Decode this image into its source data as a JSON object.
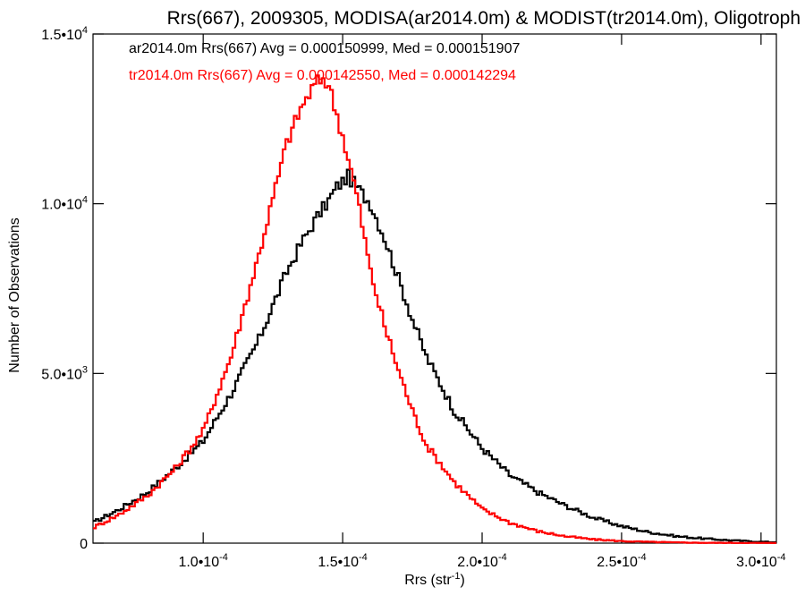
{
  "chart_data": {
    "type": "line",
    "title": "Rrs(667), 2009305, MODISA(ar2014.0m) & MODIST(tr2014.0m), Oligotroph",
    "xlabel": "Rrs (str",
    "xlabel_sup": "-1",
    "xlabel_tail": ")",
    "ylabel": "Number of Observations",
    "xlim": [
      6.05e-05,
      0.0003055
    ],
    "ylim": [
      0,
      15000
    ],
    "grid": false,
    "legend_position": "top-left",
    "x_ticks": [
      {
        "value": 0.0001,
        "base": "1.0•10",
        "exp": "-4"
      },
      {
        "value": 0.00015,
        "base": "1.5•10",
        "exp": "-4"
      },
      {
        "value": 0.0002,
        "base": "2.0•10",
        "exp": "-4"
      },
      {
        "value": 0.00025,
        "base": "2.5•10",
        "exp": "-4"
      },
      {
        "value": 0.0003,
        "base": "3.0•10",
        "exp": "-4"
      }
    ],
    "y_ticks": [
      {
        "value": 0,
        "base": "0",
        "exp": ""
      },
      {
        "value": 5000,
        "base": "5.0•10",
        "exp": "3"
      },
      {
        "value": 10000,
        "base": "1.0•10",
        "exp": "4"
      },
      {
        "value": 15000,
        "base": "1.5•10",
        "exp": "4"
      }
    ],
    "annotations": [
      {
        "text": "ar2014.0m Rrs(667) Avg = 0.000150999, Med = 0.000151907",
        "color": "#000000"
      },
      {
        "text": "tr2014.0m Rrs(667) Avg = 0.000142550, Med = 0.000142294",
        "color": "#ff0000"
      }
    ],
    "series": [
      {
        "color": "#000000",
        "x": [
          6.05e-05,
          7e-05,
          8e-05,
          9e-05,
          0.0001,
          0.00011,
          0.00012,
          0.00013,
          0.000135,
          0.00014,
          0.000145,
          0.000148,
          0.000152,
          0.000155,
          0.00016,
          0.000165,
          0.00017,
          0.000175,
          0.00018,
          0.00019,
          0.0002,
          0.00021,
          0.00022,
          0.00023,
          0.00024,
          0.00025,
          0.00026,
          0.00027,
          0.00028,
          0.00029,
          0.0003,
          0.0003055
        ],
        "y": [
          600,
          1000,
          1500,
          2200,
          3000,
          4400,
          6000,
          8000,
          8800,
          9500,
          10100,
          10500,
          10800,
          10500,
          10000,
          9000,
          7800,
          6600,
          5500,
          3900,
          2800,
          2000,
          1500,
          1100,
          750,
          500,
          320,
          200,
          130,
          80,
          40,
          30
        ]
      },
      {
        "color": "#ff0000",
        "x": [
          6.05e-05,
          7e-05,
          8e-05,
          9e-05,
          0.0001,
          0.00011,
          0.00012,
          0.00013,
          0.000135,
          0.00014,
          0.000143,
          0.000145,
          0.00015,
          0.000155,
          0.00016,
          0.000165,
          0.00017,
          0.000175,
          0.00018,
          0.00019,
          0.0002,
          0.00021,
          0.00022,
          0.00023,
          0.00024,
          0.00025,
          0.00026,
          0.00027,
          0.00028,
          0.0003,
          0.0003055
        ],
        "y": [
          450,
          850,
          1400,
          2200,
          3300,
          5500,
          8500,
          11800,
          12800,
          13500,
          13700,
          13500,
          12000,
          10300,
          8000,
          6400,
          5100,
          3900,
          2900,
          1800,
          1000,
          600,
          350,
          200,
          110,
          60,
          35,
          20,
          10,
          5,
          5
        ]
      }
    ]
  }
}
